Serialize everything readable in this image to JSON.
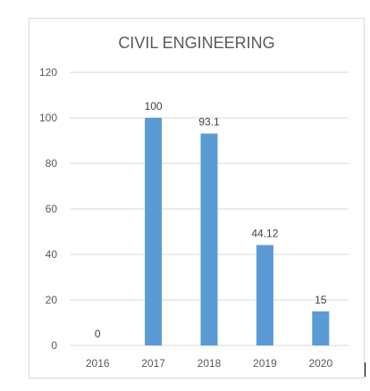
{
  "chart_data": {
    "type": "bar",
    "title": "CIVIL ENGINEERING",
    "categories": [
      "2016",
      "2017",
      "2018",
      "2019",
      "2020"
    ],
    "values": [
      0,
      100,
      93.1,
      44.12,
      15
    ],
    "value_labels": [
      "0",
      "100",
      "93.1",
      "44.12",
      "15"
    ],
    "ylim": [
      0,
      120
    ],
    "yticks": [
      0,
      20,
      40,
      60,
      80,
      100,
      120
    ],
    "grid": true,
    "legend": "none",
    "bar_color": "#5b9bd5",
    "grid_color": "#d9d9d9"
  }
}
